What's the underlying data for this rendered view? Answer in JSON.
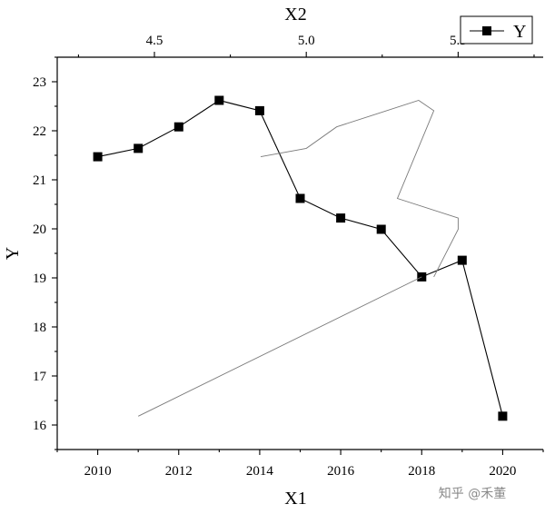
{
  "watermark": "知乎 @禾董",
  "chart_data": {
    "type": "line",
    "x1_axis": {
      "label": "X1",
      "range": [
        2009,
        2021
      ],
      "ticks": [
        2010,
        2012,
        2014,
        2016,
        2018,
        2020
      ]
    },
    "x2_axis": {
      "label": "X2",
      "range": [
        4.18,
        5.78
      ],
      "ticks": [
        4.5,
        5.0,
        5.5
      ],
      "tick_labels": [
        "4.5",
        "5.0",
        "5.5"
      ]
    },
    "y_axis": {
      "label": "Y",
      "range": [
        15.5,
        23.5
      ],
      "ticks": [
        16,
        17,
        18,
        19,
        20,
        21,
        22,
        23
      ]
    },
    "grid": false,
    "legend": {
      "placement": "top-right",
      "entries": [
        "Y"
      ]
    },
    "series": [
      {
        "name": "Y",
        "axis": "X1",
        "style": "line+square-markers",
        "color": "#000000",
        "x": [
          2010,
          2011,
          2012,
          2013,
          2014,
          2015,
          2016,
          2017,
          2018,
          2019,
          2020
        ],
        "y": [
          21.47,
          21.64,
          22.08,
          22.62,
          22.41,
          20.62,
          20.22,
          19.99,
          19.02,
          19.36,
          16.18
        ]
      },
      {
        "name": "",
        "axis": "X2",
        "style": "line",
        "color": "#7a7a7a",
        "x": [
          4.85,
          5.0,
          5.1,
          5.37,
          5.42,
          5.3,
          5.5,
          5.5,
          5.42
        ],
        "y": [
          21.47,
          21.64,
          22.08,
          22.62,
          22.41,
          20.62,
          20.22,
          19.99,
          19.02
        ]
      },
      {
        "name": "",
        "axis": "X1",
        "style": "line",
        "color": "#7a7a7a",
        "x": [
          2018,
          2011
        ],
        "y": [
          19.02,
          16.18
        ]
      }
    ]
  }
}
